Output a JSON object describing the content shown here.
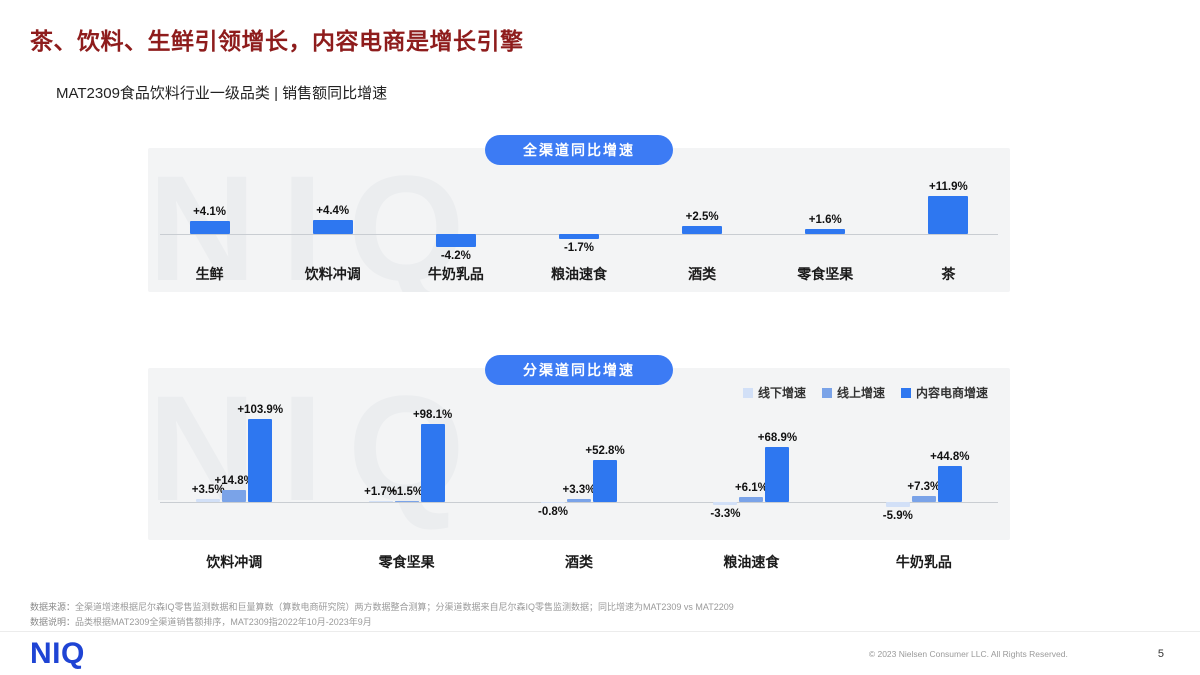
{
  "colors": {
    "accent_blue": "#3c7bf4",
    "title_red": "#8e1c1c",
    "niq_blue": "#1f44d4",
    "panel_gray": "#f3f4f5",
    "offline_blue": "#d2e0f7",
    "online_blue": "#7aa3e8",
    "content_ecommerce_blue": "#2e77f0"
  },
  "header": {
    "title": "茶、饮料、生鲜引领增长，内容电商是增长引擎",
    "subtitle": "MAT2309食品饮料行业一级品类 | 销售额同比增速"
  },
  "watermark": "NIQ",
  "chart_data": [
    {
      "type": "bar",
      "title": "全渠道同比增速",
      "categories": [
        "生鲜",
        "饮料冲调",
        "牛奶乳品",
        "粮油速食",
        "酒类",
        "零食坚果",
        "茶"
      ],
      "values": [
        4.1,
        4.4,
        -4.2,
        -1.7,
        2.5,
        1.6,
        11.9
      ],
      "unit": "%",
      "color": "#2e77f0",
      "grid": false,
      "ylim": [
        -6,
        14
      ]
    },
    {
      "type": "grouped-bar",
      "title": "分渠道同比增速",
      "categories": [
        "饮料冲调",
        "零食坚果",
        "酒类",
        "粮油速食",
        "牛奶乳品"
      ],
      "series": [
        {
          "name": "线下增速",
          "color": "#d2e0f7",
          "values": [
            3.5,
            1.7,
            -0.8,
            -3.3,
            -5.9
          ]
        },
        {
          "name": "线上增速",
          "color": "#7aa3e8",
          "values": [
            14.8,
            1.5,
            3.3,
            6.1,
            7.3
          ]
        },
        {
          "name": "内容电商增速",
          "color": "#2e77f0",
          "values": [
            103.9,
            98.1,
            52.8,
            68.9,
            44.8
          ]
        }
      ],
      "unit": "%",
      "grid": false,
      "legend_position": "top-right",
      "ylim": [
        -10,
        120
      ]
    }
  ],
  "footnotes": [
    {
      "label": "数据来源：",
      "text": "全渠道增速根据尼尔森IQ零售监测数据和巨量算数（算数电商研究院）两方数据整合测算；分渠道数据来自尼尔森IQ零售监测数据；同比增速为MAT2309 vs MAT2209"
    },
    {
      "label": "数据说明：",
      "text": "品类根据MAT2309全渠道销售额排序，MAT2309指2022年10月-2023年9月"
    }
  ],
  "footer": {
    "logo": "NIQ",
    "copyright": "© 2023 Nielsen Consumer LLC. All Rights Reserved.",
    "page": "5"
  }
}
